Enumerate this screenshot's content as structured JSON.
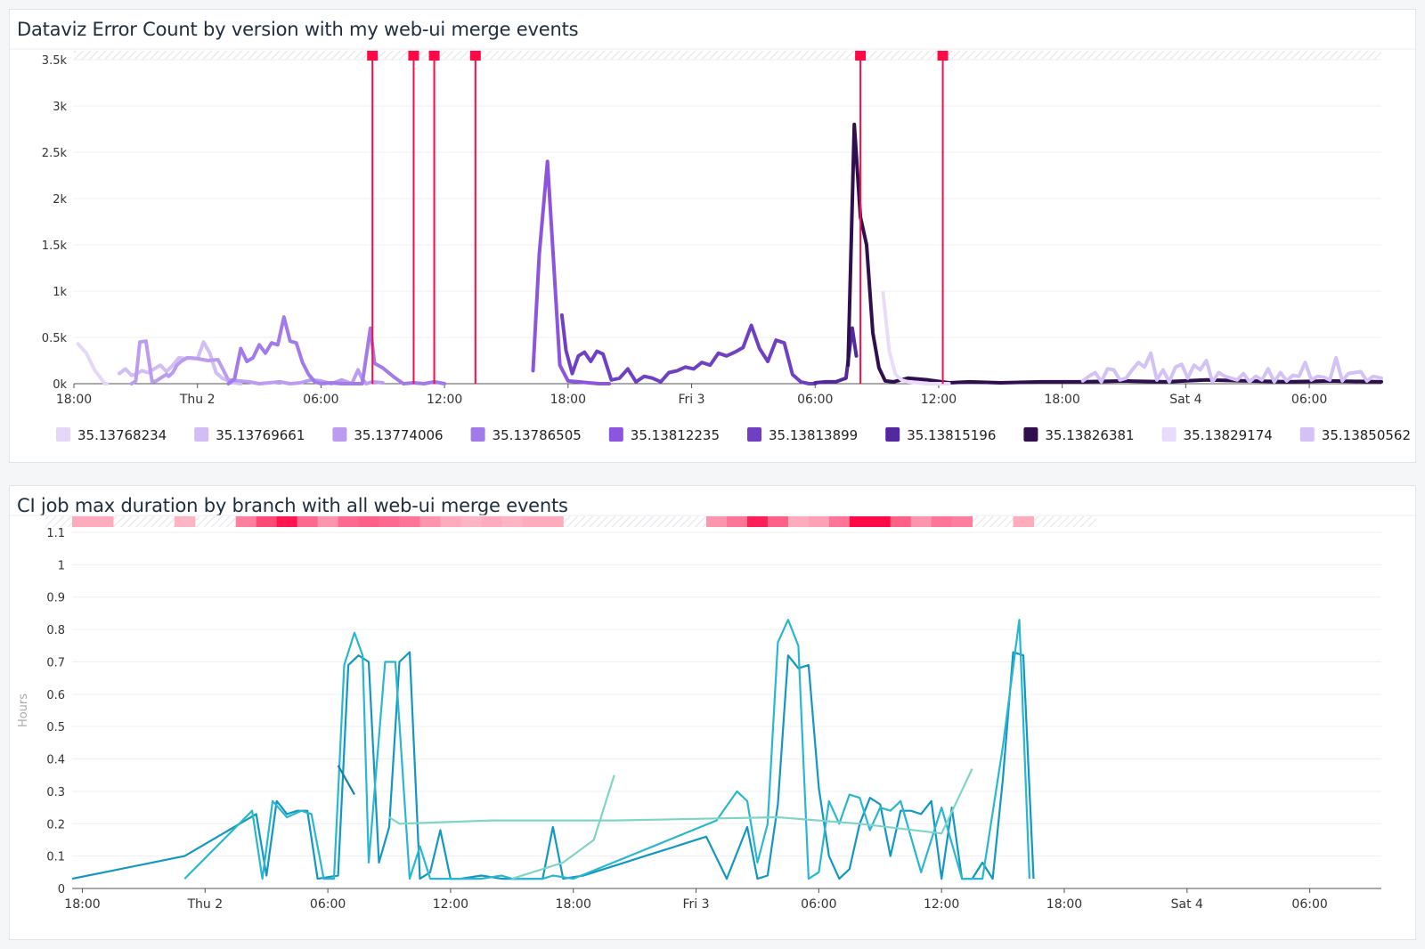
{
  "charts": [
    {
      "title": "Dataviz Error Count by version with my web-ui merge events",
      "type": "line",
      "ylabel": "",
      "y_ticks": [
        "0k",
        "0.5k",
        "1k",
        "1.5k",
        "2k",
        "2.5k",
        "3k",
        "3.5k"
      ],
      "y_tick_values": [
        0,
        500,
        1000,
        1500,
        2000,
        2500,
        3000,
        3500
      ],
      "ylim": [
        0,
        3500
      ],
      "x_ticks": [
        "18:00",
        "Thu 2",
        "06:00",
        "12:00",
        "18:00",
        "Fri 3",
        "06:00",
        "12:00",
        "18:00",
        "Sat 4",
        "06:00"
      ],
      "x_tick_hours": [
        0,
        6,
        12,
        18,
        24,
        30,
        36,
        42,
        48,
        54,
        60
      ],
      "xlim_hours": [
        0,
        63.5
      ],
      "event_markers_hours": [
        14.5,
        16.5,
        17.5,
        19.5,
        38.2,
        42.2
      ],
      "event_color": "#ff0a47",
      "legend": [
        {
          "label": "35.13768234",
          "color": "#e4d7f8"
        },
        {
          "label": "35.13769661",
          "color": "#d2bdf4"
        },
        {
          "label": "35.13774006",
          "color": "#bc9cf0"
        },
        {
          "label": "35.13786505",
          "color": "#a37ae9"
        },
        {
          "label": "35.13812235",
          "color": "#8b55e0"
        },
        {
          "label": "35.13813899",
          "color": "#7040c4"
        },
        {
          "label": "35.13815196",
          "color": "#54299f"
        },
        {
          "label": "35.13826381",
          "color": "#300f4f"
        },
        {
          "label": "35.13829174",
          "color": "#e8dcfa"
        },
        {
          "label": "35.13850562",
          "color": "#d4c2f6"
        }
      ],
      "series": [
        {
          "name": "35.13768234",
          "color": "#e4d7f8",
          "x": [
            0.2,
            0.6,
            1.0,
            1.4,
            1.5,
            1.6
          ],
          "y": [
            430,
            330,
            150,
            30,
            0,
            0
          ]
        },
        {
          "name": "35.13769661",
          "color": "#d2bdf4",
          "x": [
            2.2,
            2.5,
            2.8,
            3.0,
            3.3,
            3.6,
            3.9,
            4.2,
            4.5,
            4.8,
            5.1,
            5.4,
            5.7,
            6.0,
            6.3,
            6.6,
            6.9,
            7.2,
            7.5,
            7.8,
            8.1
          ],
          "y": [
            110,
            160,
            90,
            100,
            140,
            120,
            160,
            200,
            130,
            200,
            280,
            270,
            280,
            270,
            450,
            330,
            120,
            60,
            30,
            10,
            0
          ]
        },
        {
          "name": "35.13774006",
          "color": "#bc9cf0",
          "x": [
            2.8,
            3.0,
            3.2,
            3.5,
            3.8,
            4.0,
            4.2,
            4.5,
            4.6,
            4.8,
            5.0,
            5.2,
            5.5,
            6.0,
            6.5,
            7.0,
            7.5,
            8.0,
            8.5,
            9.0,
            9.5,
            10.0,
            10.5,
            11.0,
            11.5,
            12.0,
            12.5,
            13.0,
            13.5,
            13.8,
            14.0,
            14.2,
            14.5,
            15.0
          ],
          "y": [
            0,
            30,
            450,
            460,
            20,
            30,
            60,
            100,
            80,
            120,
            200,
            240,
            280,
            270,
            250,
            260,
            40,
            30,
            20,
            0,
            10,
            20,
            0,
            10,
            40,
            30,
            0,
            40,
            0,
            150,
            50,
            0,
            20,
            10
          ]
        },
        {
          "name": "35.13786505",
          "color": "#a37ae9",
          "x": [
            7.5,
            7.8,
            8.1,
            8.4,
            8.7,
            9.0,
            9.3,
            9.6,
            9.9,
            10.2,
            10.5,
            10.8,
            11.1,
            11.4,
            11.7,
            12.0,
            12.5,
            13.0,
            13.5,
            14.0,
            14.2,
            14.4,
            14.6,
            15.0,
            15.5,
            16.0,
            16.5,
            17.0,
            17.5,
            18.0
          ],
          "y": [
            0,
            50,
            380,
            240,
            280,
            420,
            330,
            440,
            420,
            720,
            460,
            440,
            230,
            100,
            20,
            0,
            10,
            0,
            0,
            0,
            300,
            600,
            220,
            170,
            80,
            0,
            10,
            0,
            20,
            0
          ]
        },
        {
          "name": "35.13812235",
          "color": "#8b55e0",
          "x": [
            22.3,
            22.6,
            23.0,
            23.3,
            23.6,
            24.0,
            24.5,
            25.0,
            25.5,
            26.0
          ],
          "y": [
            140,
            1400,
            2400,
            1300,
            200,
            30,
            20,
            10,
            0,
            0
          ]
        },
        {
          "name": "35.13813899",
          "color": "#7040c4",
          "x": [
            23.7,
            23.9,
            24.2,
            24.5,
            24.8,
            25.1,
            25.4,
            25.7,
            26.1,
            26.5,
            26.9,
            27.3,
            27.7,
            28.1,
            28.5,
            28.9,
            29.3,
            29.7,
            30.1,
            30.5,
            30.9,
            31.3,
            31.7,
            32.1,
            32.5,
            32.9,
            33.3,
            33.7,
            34.1,
            34.5,
            34.9,
            35.3,
            35.7,
            36.0
          ],
          "y": [
            740,
            360,
            110,
            300,
            340,
            240,
            350,
            320,
            40,
            60,
            160,
            20,
            80,
            60,
            20,
            120,
            140,
            180,
            160,
            230,
            200,
            330,
            300,
            340,
            390,
            630,
            380,
            240,
            470,
            440,
            100,
            20,
            0,
            0
          ]
        },
        {
          "name": "35.13815196",
          "color": "#54299f",
          "x": [
            36.0,
            36.5,
            37.0,
            37.5,
            37.8,
            38.0
          ],
          "y": [
            10,
            20,
            20,
            60,
            600,
            300
          ]
        },
        {
          "name": "35.13826381",
          "color": "#300f4f",
          "x": [
            37.6,
            37.9,
            38.2,
            38.5,
            38.8,
            39.1,
            39.4,
            39.8,
            40.5,
            41.5,
            42.5,
            43.5,
            45,
            47,
            49,
            51,
            53,
            55,
            57,
            59,
            61,
            63.5
          ],
          "y": [
            200,
            2800,
            1800,
            1500,
            550,
            170,
            30,
            20,
            60,
            40,
            10,
            20,
            10,
            20,
            20,
            30,
            20,
            40,
            30,
            20,
            30,
            20
          ]
        },
        {
          "name": "35.13829174",
          "color": "#e8dcfa",
          "x": [
            39.3,
            39.6,
            39.9,
            40.2,
            40.5,
            41.0,
            41.5,
            42.0,
            42.5
          ],
          "y": [
            980,
            350,
            100,
            40,
            20,
            10,
            0,
            0,
            0
          ]
        },
        {
          "name": "35.13850562",
          "color": "#d4c2f6",
          "x": [
            49.0,
            49.3,
            49.6,
            49.9,
            50.2,
            50.5,
            50.8,
            51.1,
            51.4,
            51.7,
            52.0,
            52.3,
            52.6,
            52.9,
            53.2,
            53.5,
            53.8,
            54.1,
            54.4,
            54.7,
            55.0,
            55.3,
            55.6,
            55.9,
            56.2,
            56.5,
            56.8,
            57.1,
            57.4,
            57.7,
            58.0,
            58.3,
            58.6,
            58.9,
            59.2,
            59.5,
            59.8,
            60.1,
            60.4,
            60.7,
            61.0,
            61.3,
            61.6,
            61.9,
            62.2,
            62.5,
            62.8,
            63.1,
            63.5
          ],
          "y": [
            30,
            80,
            120,
            20,
            160,
            150,
            40,
            60,
            150,
            230,
            180,
            330,
            40,
            150,
            20,
            180,
            210,
            60,
            200,
            150,
            250,
            20,
            120,
            80,
            60,
            40,
            110,
            20,
            80,
            40,
            160,
            20,
            120,
            30,
            90,
            80,
            230,
            40,
            80,
            70,
            40,
            280,
            30,
            110,
            120,
            130,
            30,
            80,
            60
          ]
        }
      ]
    },
    {
      "title": "CI job max duration by branch with all web-ui merge events",
      "type": "line",
      "ylabel": "Hours",
      "y_ticks": [
        "0",
        "0.1",
        "0.2",
        "0.3",
        "0.4",
        "0.5",
        "0.6",
        "0.7",
        "0.8",
        "0.9",
        "1",
        "1.1"
      ],
      "y_tick_values": [
        0,
        0.1,
        0.2,
        0.3,
        0.4,
        0.5,
        0.6,
        0.7,
        0.8,
        0.9,
        1.0,
        1.1
      ],
      "ylim": [
        0,
        1.1
      ],
      "x_ticks": [
        "18:00",
        "Thu 2",
        "06:00",
        "12:00",
        "18:00",
        "Fri 3",
        "06:00",
        "12:00",
        "18:00",
        "Sat 4",
        "06:00"
      ],
      "x_tick_hours": [
        0,
        6,
        12,
        18,
        24,
        30,
        36,
        42,
        48,
        54,
        60
      ],
      "xlim_hours": [
        -0.5,
        63.5
      ],
      "event_heat_hours": [
        0,
        1,
        5,
        8,
        9,
        10,
        11,
        12,
        13,
        14,
        15,
        16,
        17,
        18,
        19,
        20,
        21,
        22,
        23,
        31,
        32,
        33,
        34,
        35,
        36,
        37,
        38,
        39,
        40,
        41,
        42,
        43,
        46
      ],
      "event_heat_intensity": [
        0.25,
        0.25,
        0.2,
        0.45,
        0.7,
        0.95,
        0.55,
        0.35,
        0.55,
        0.6,
        0.55,
        0.5,
        0.35,
        0.25,
        0.2,
        0.25,
        0.2,
        0.25,
        0.25,
        0.35,
        0.5,
        0.9,
        0.6,
        0.25,
        0.3,
        0.5,
        1.0,
        1.0,
        0.6,
        0.35,
        0.5,
        0.45,
        0.25
      ],
      "series": [
        {
          "name": "",
          "color": "#1297c2",
          "x": [
            -0.5,
            5.0,
            8.5,
            9.0,
            9.5,
            10.0,
            10.5,
            11.0,
            11.5,
            12.5,
            13.0,
            13.5,
            14.0,
            14.5,
            15.0,
            15.5,
            16.0,
            16.5,
            17.0,
            17.5,
            18.0,
            18.5,
            19.5,
            20.5,
            21.5,
            22.5,
            23.0,
            23.5,
            24.5,
            25.5,
            26.5,
            27.5,
            28.5,
            29.5,
            30.5,
            31.5,
            32.5,
            33.0,
            33.5,
            34.0,
            34.5,
            35.0,
            35.5,
            36.0,
            36.5,
            37.0,
            37.5,
            38.0,
            38.5,
            39.0,
            39.5,
            40.0,
            40.5,
            41.0,
            41.5,
            42.0,
            42.5,
            43.0,
            43.5,
            44.0,
            44.5,
            45.0,
            45.5,
            46.0,
            46.5
          ],
          "y": [
            0.03,
            0.1,
            0.23,
            0.04,
            0.27,
            0.23,
            0.24,
            0.24,
            0.03,
            0.04,
            0.69,
            0.72,
            0.7,
            0.08,
            0.19,
            0.7,
            0.73,
            0.03,
            0.05,
            0.18,
            0.03,
            0.03,
            0.04,
            0.03,
            0.03,
            0.03,
            0.19,
            0.03,
            0.04,
            0.06,
            0.08,
            0.1,
            0.12,
            0.14,
            0.16,
            0.03,
            0.19,
            0.03,
            0.04,
            0.26,
            0.72,
            0.68,
            0.69,
            0.31,
            0.1,
            0.03,
            0.06,
            0.2,
            0.28,
            0.26,
            0.1,
            0.24,
            0.24,
            0.23,
            0.27,
            0.03,
            0.25,
            0.03,
            0.03,
            0.08,
            0.03,
            0.34,
            0.73,
            0.72,
            0.03
          ]
        },
        {
          "name": "",
          "color": "#29b7d0",
          "x": [
            5.0,
            8.3,
            8.8,
            9.3,
            10.0,
            10.7,
            11.2,
            11.8,
            12.3,
            12.8,
            13.3,
            13.7,
            14.0,
            14.8,
            15.3,
            16.0,
            16.5,
            17.0,
            17.5,
            18.0,
            18.8,
            19.5,
            20.5,
            21.0,
            21.5,
            22.5,
            23.0,
            24.0,
            31.0,
            32.0,
            32.5,
            33.0,
            33.5,
            34.0,
            34.5,
            35.0,
            35.5,
            36.0,
            36.5,
            37.0,
            37.5,
            38.0,
            38.5,
            39.0,
            39.5,
            40.0,
            41.0,
            42.0,
            43.0,
            44.0,
            45.0,
            45.8,
            46.3
          ],
          "y": [
            0.03,
            0.24,
            0.03,
            0.27,
            0.22,
            0.24,
            0.23,
            0.03,
            0.03,
            0.69,
            0.79,
            0.72,
            0.08,
            0.7,
            0.7,
            0.03,
            0.13,
            0.03,
            0.03,
            0.03,
            0.03,
            0.03,
            0.04,
            0.03,
            0.03,
            0.03,
            0.04,
            0.03,
            0.21,
            0.3,
            0.27,
            0.08,
            0.2,
            0.76,
            0.83,
            0.75,
            0.03,
            0.05,
            0.27,
            0.2,
            0.29,
            0.28,
            0.18,
            0.25,
            0.24,
            0.27,
            0.05,
            0.25,
            0.03,
            0.03,
            0.44,
            0.83,
            0.03
          ]
        },
        {
          "name": "",
          "color": "#7fd4c6",
          "x": [
            15.0,
            15.5,
            20.0,
            26.0,
            34.0,
            38.0,
            42.0,
            43.5
          ],
          "y": [
            0.22,
            0.2,
            0.21,
            0.21,
            0.22,
            0.2,
            0.17,
            0.37
          ]
        },
        {
          "name": "",
          "color": "#7fd4c6",
          "x": [
            21.0,
            23.5,
            25.0,
            26.0
          ],
          "y": [
            0.03,
            0.08,
            0.15,
            0.35
          ]
        },
        {
          "name": "",
          "color": "#1880a8",
          "x": [
            12.5,
            13.3
          ],
          "y": [
            0.38,
            0.29
          ]
        }
      ]
    }
  ]
}
